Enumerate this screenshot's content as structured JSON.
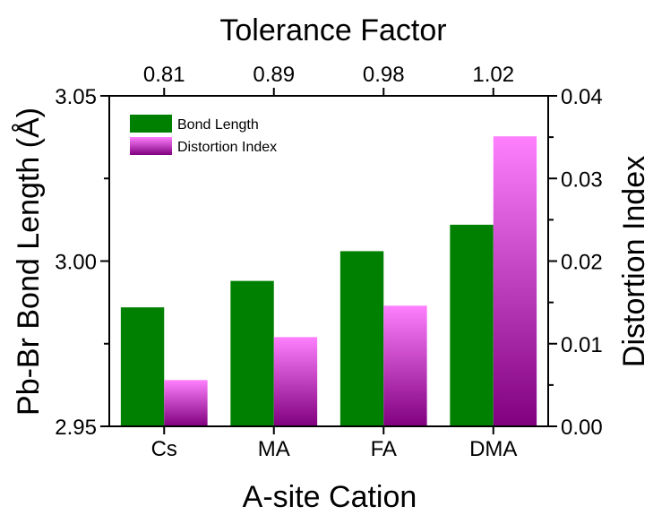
{
  "chart_data": {
    "type": "bar",
    "categories": [
      "Cs",
      "MA",
      "FA",
      "DMA"
    ],
    "top_axis": {
      "title": "Tolerance Factor",
      "tick_labels": [
        "0.81",
        "0.89",
        "0.98",
        "1.02"
      ]
    },
    "xlabel": "A-site Cation",
    "ylabel_left": "Pb-Br Bond Length (Å)",
    "ylabel_right": "Distortion Index",
    "ylim_left": [
      2.95,
      3.05
    ],
    "ylim_right": [
      0.0,
      0.04
    ],
    "yticks_left": [
      "2.95",
      "3.00",
      "3.05"
    ],
    "yticks_right": [
      "0.00",
      "0.01",
      "0.02",
      "0.03",
      "0.04"
    ],
    "series": [
      {
        "name": "Bond Length",
        "axis": "left",
        "color": "#008000",
        "values": [
          2.986,
          2.994,
          3.003,
          3.011
        ]
      },
      {
        "name": "Distortion Index",
        "axis": "right",
        "color_top": "#ff80ff",
        "color_bottom": "#800080",
        "values": [
          0.0056,
          0.0108,
          0.0146,
          0.0351
        ]
      }
    ],
    "legend_position": "top-left",
    "grid": false
  }
}
